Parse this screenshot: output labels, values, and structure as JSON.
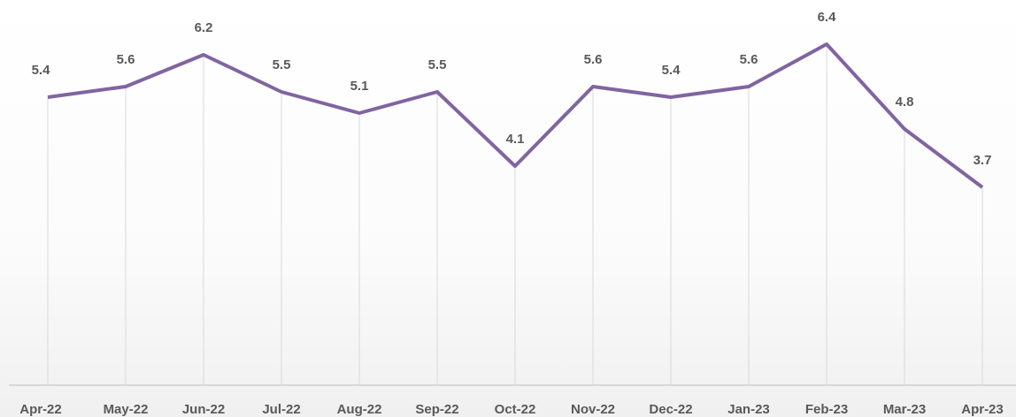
{
  "chart_data": {
    "type": "line",
    "categories": [
      "Apr-22",
      "May-22",
      "Jun-22",
      "Jul-22",
      "Aug-22",
      "Sep-22",
      "Oct-22",
      "Nov-22",
      "Dec-22",
      "Jan-23",
      "Feb-23",
      "Mar-23",
      "Apr-23"
    ],
    "values": [
      5.4,
      5.6,
      6.2,
      5.5,
      5.1,
      5.5,
      4.1,
      5.6,
      5.4,
      5.6,
      6.4,
      4.8,
      3.7
    ],
    "color": "#8064a2",
    "ylim": [
      0,
      7
    ]
  }
}
